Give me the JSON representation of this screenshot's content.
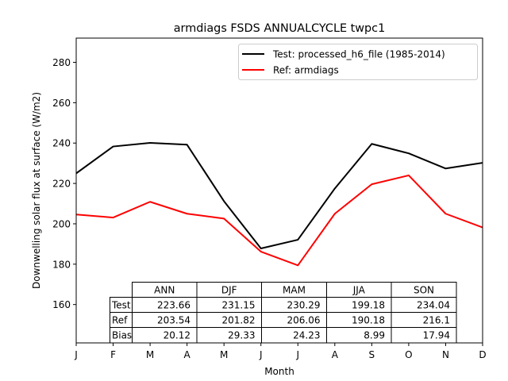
{
  "chart_data": {
    "type": "line",
    "title": "armdiags FSDS ANNUALCYCLE twpc1",
    "xlabel": "Month",
    "ylabel": "Downwelling solar flux at surface (W/m2)",
    "categories": [
      "J",
      "F",
      "M",
      "A",
      "M",
      "J",
      "J",
      "A",
      "S",
      "O",
      "N",
      "D"
    ],
    "ylim": [
      141,
      292
    ],
    "yticks": [
      160,
      180,
      200,
      220,
      240,
      260,
      280
    ],
    "legend_position": "top-right",
    "grid": false,
    "series": [
      {
        "name": "Test: processed_h6_file (1985-2014)",
        "color": "#000000",
        "values": [
          225,
          238.3,
          240.1,
          239.2,
          211.2,
          187.8,
          192.1,
          217.5,
          239.6,
          234.9,
          227.4,
          230.2
        ]
      },
      {
        "name": "Ref: armdiags",
        "color": "#ff0000",
        "values": [
          204.6,
          203.1,
          210.9,
          205,
          202.6,
          186.2,
          179.4,
          205,
          219.6,
          224,
          205,
          198.2
        ]
      }
    ],
    "table": {
      "columns": [
        "ANN",
        "DJF",
        "MAM",
        "JJA",
        "SON"
      ],
      "rows": [
        {
          "label": "Test",
          "values": [
            "223.66",
            "231.15",
            "230.29",
            "199.18",
            "234.04"
          ]
        },
        {
          "label": "Ref",
          "values": [
            "203.54",
            "201.82",
            "206.06",
            "190.18",
            "216.1"
          ]
        },
        {
          "label": "Bias",
          "values": [
            "20.12",
            "29.33",
            "24.23",
            "8.99",
            "17.94"
          ]
        }
      ]
    }
  }
}
